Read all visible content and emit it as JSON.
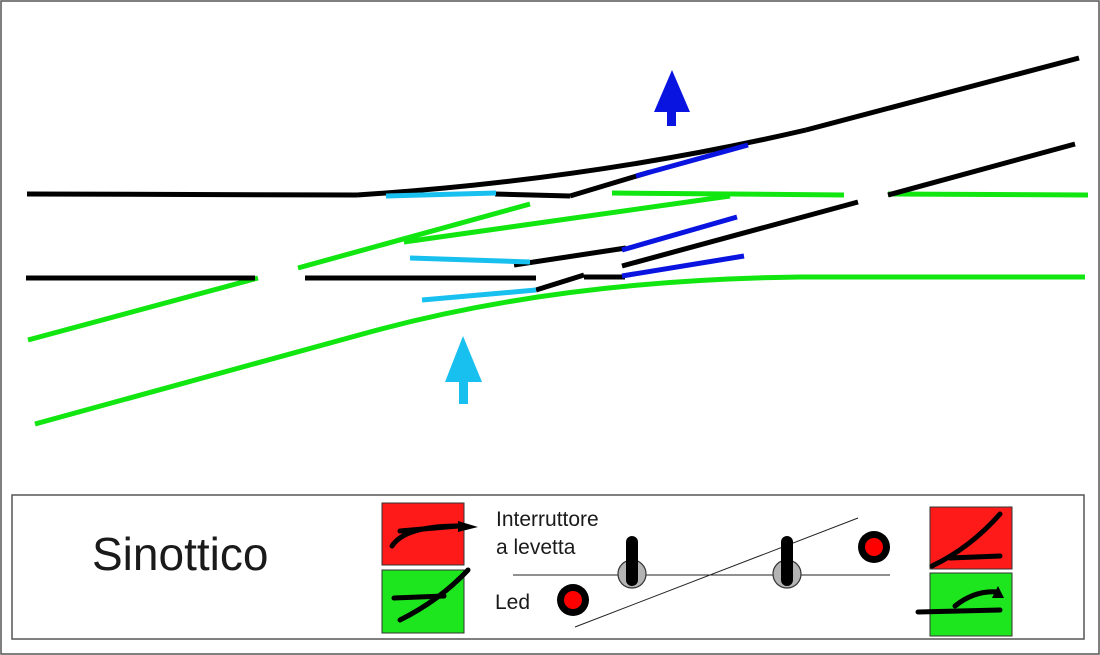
{
  "colors": {
    "track": "#000000",
    "route_green": "#11e611",
    "route_blue": "#0a14e0",
    "route_cyan": "#18c0f0",
    "arrow_blue": "#0a14e0",
    "arrow_cyan": "#18c0f0",
    "panel_red": "#ff1a1a",
    "panel_green": "#1ee61e",
    "led_red": "#ff0000",
    "toggle_grey": "#b4b4b4"
  },
  "legend": {
    "title": "Sinottico",
    "toggle_label_line1": "Interruttore",
    "toggle_label_line2": "a levetta",
    "led_label": "Led"
  },
  "icons": {
    "direction_arrow_up": "arrow-up-icon",
    "turnout_straight": "turnout-icon",
    "turnout_diverging": "turnout-diverging-icon",
    "toggle_switch": "toggle-switch-icon",
    "led": "led-icon"
  }
}
